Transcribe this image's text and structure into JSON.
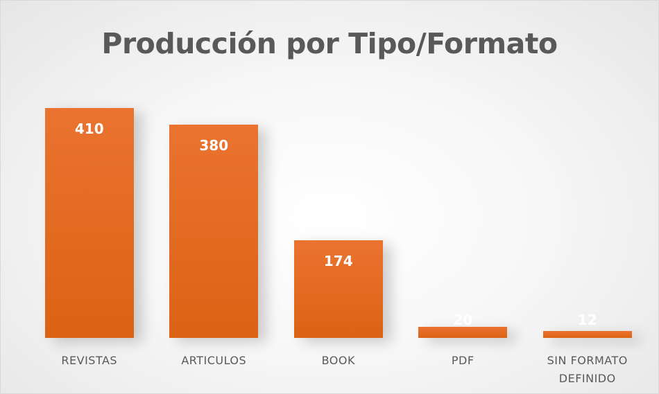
{
  "chart_data": {
    "type": "bar",
    "title": "Producción por Tipo/Formato",
    "categories": [
      "REVISTAS",
      "ARTICULOS",
      "BOOK",
      "PDF",
      "SIN FORMATO DEFINIDO"
    ],
    "values": [
      410,
      380,
      174,
      20,
      12
    ],
    "color": "#ea7330"
  }
}
